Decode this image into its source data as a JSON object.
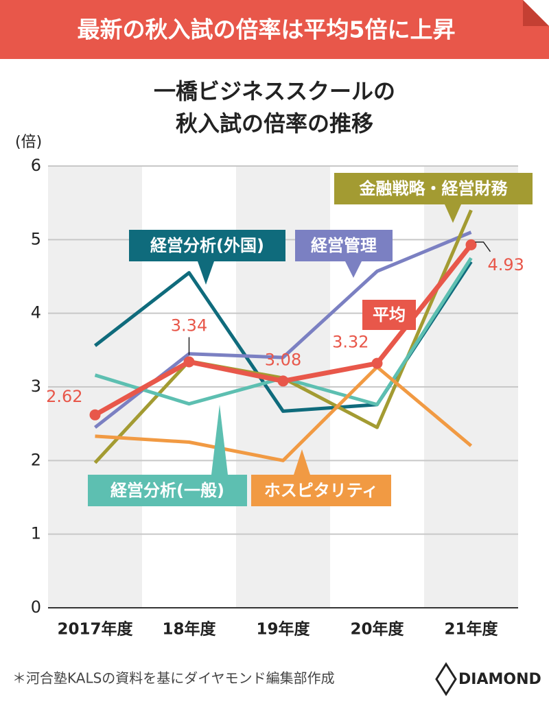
{
  "header": {
    "title": "最新の秋入試の倍率は平均5倍に上昇"
  },
  "chart_data": {
    "type": "line",
    "title": [
      "一橋ビジネススクールの",
      "秋入試の倍率の推移"
    ],
    "y_label": "(倍)",
    "categories": [
      "2017年度",
      "18年度",
      "19年度",
      "20年度",
      "21年度"
    ],
    "series": [
      {
        "name": "経営分析(外国)",
        "color": "#0f6b7c",
        "values": [
          3.56,
          4.55,
          2.67,
          2.76,
          4.7
        ]
      },
      {
        "name": "経営管理",
        "color": "#7b80c2",
        "values": [
          2.45,
          3.45,
          3.4,
          4.57,
          5.1
        ]
      },
      {
        "name": "金融戦略・経営財務",
        "color": "#a39b32",
        "values": [
          1.97,
          3.35,
          3.12,
          2.45,
          5.4
        ]
      },
      {
        "name": "経営分析(一般)",
        "color": "#5dbfb1",
        "values": [
          3.16,
          2.77,
          3.12,
          2.76,
          4.75
        ]
      },
      {
        "name": "ホスピタリティ",
        "color": "#f19a43",
        "values": [
          2.33,
          2.25,
          2.0,
          3.27,
          2.2
        ]
      },
      {
        "name": "平均",
        "color": "#e8574a",
        "values": [
          2.62,
          3.34,
          3.08,
          3.32,
          4.93
        ],
        "show_values": true,
        "markers": true
      }
    ],
    "ylim": [
      0,
      6
    ],
    "yticks": [
      0,
      1,
      2,
      3,
      4,
      5,
      6
    ],
    "grid": true
  },
  "footer": {
    "source": "＊河合塾KALSの資料を基にダイヤモンド編集部作成",
    "logo": "DIAMOND"
  }
}
